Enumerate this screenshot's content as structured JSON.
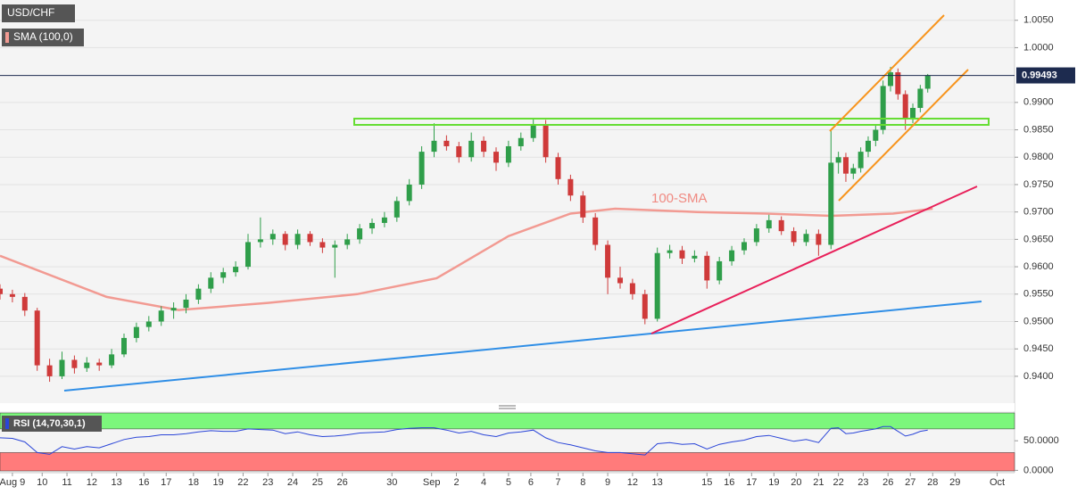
{
  "chart_data": {
    "type": "candlestick",
    "title": "USD/CHF",
    "annotation": "100-SMA",
    "xlim": [
      0,
      40.9
    ],
    "xticks": [
      {
        "value": 0.5,
        "label": "Aug 9"
      },
      {
        "value": 1.7,
        "label": "10"
      },
      {
        "value": 2.7,
        "label": "11"
      },
      {
        "value": 3.7,
        "label": "12"
      },
      {
        "value": 4.7,
        "label": "13"
      },
      {
        "value": 5.8,
        "label": "16"
      },
      {
        "value": 6.7,
        "label": "17"
      },
      {
        "value": 7.8,
        "label": "18"
      },
      {
        "value": 8.8,
        "label": "19"
      },
      {
        "value": 9.8,
        "label": "22"
      },
      {
        "value": 10.8,
        "label": "23"
      },
      {
        "value": 11.8,
        "label": "24"
      },
      {
        "value": 12.8,
        "label": "25"
      },
      {
        "value": 13.8,
        "label": "26"
      },
      {
        "value": 15.8,
        "label": "30"
      },
      {
        "value": 17.4,
        "label": "Sep"
      },
      {
        "value": 18.4,
        "label": "2"
      },
      {
        "value": 19.5,
        "label": "4"
      },
      {
        "value": 20.5,
        "label": "5"
      },
      {
        "value": 21.4,
        "label": "6"
      },
      {
        "value": 22.5,
        "label": "7"
      },
      {
        "value": 23.5,
        "label": "8"
      },
      {
        "value": 24.5,
        "label": "9"
      },
      {
        "value": 25.5,
        "label": "12"
      },
      {
        "value": 26.5,
        "label": "13"
      },
      {
        "value": 28.5,
        "label": "15"
      },
      {
        "value": 29.4,
        "label": "16"
      },
      {
        "value": 30.3,
        "label": "17"
      },
      {
        "value": 31.2,
        "label": "19"
      },
      {
        "value": 32.1,
        "label": "20"
      },
      {
        "value": 33.0,
        "label": "21"
      },
      {
        "value": 33.8,
        "label": "22"
      },
      {
        "value": 34.8,
        "label": "23"
      },
      {
        "value": 35.8,
        "label": "26"
      },
      {
        "value": 36.7,
        "label": "27"
      },
      {
        "value": 37.6,
        "label": "28"
      },
      {
        "value": 38.5,
        "label": "29"
      },
      {
        "value": 40.2,
        "label": "Oct"
      }
    ],
    "ylim": [
      0.9351,
      1.0087
    ],
    "yticks": [
      {
        "value": 1.005,
        "label": "1.0050"
      },
      {
        "value": 1.0,
        "label": "1.0000"
      },
      {
        "value": 0.99,
        "label": "0.9900"
      },
      {
        "value": 0.985,
        "label": "0.9850"
      },
      {
        "value": 0.98,
        "label": "0.9800"
      },
      {
        "value": 0.975,
        "label": "0.9750"
      },
      {
        "value": 0.97,
        "label": "0.9700"
      },
      {
        "value": 0.965,
        "label": "0.9650"
      },
      {
        "value": 0.96,
        "label": "0.9600"
      },
      {
        "value": 0.955,
        "label": "0.9550"
      },
      {
        "value": 0.95,
        "label": "0.9500"
      },
      {
        "value": 0.945,
        "label": "0.9450"
      },
      {
        "value": 0.94,
        "label": "0.9400"
      }
    ],
    "grid": true,
    "last_price": 0.99493,
    "up_color": "#2f9e4a",
    "down_color": "#cf3a3a",
    "x": [
      0,
      0.5,
      1,
      1.5,
      2,
      2.5,
      3,
      3.5,
      4,
      4.5,
      5,
      5.5,
      6,
      6.5,
      7,
      7.5,
      8,
      8.5,
      9,
      9.5,
      10,
      10.5,
      11,
      11.5,
      12,
      12.5,
      13,
      13.5,
      14,
      14.5,
      15,
      15.5,
      16,
      16.5,
      17,
      17.5,
      18,
      18.5,
      19,
      19.5,
      20,
      20.5,
      21,
      21.5,
      22,
      22.5,
      23,
      23.5,
      24,
      24.5,
      25,
      25.5,
      26,
      26.5,
      27,
      27.5,
      28,
      28.5,
      29,
      29.5,
      30,
      30.5,
      31,
      31.5,
      32,
      32.5,
      33,
      33.5,
      33.8,
      34.1,
      34.4,
      34.7,
      35,
      35.3,
      35.6,
      35.9,
      36.2,
      36.5,
      36.8,
      37.1,
      37.4
    ],
    "ohlc": [
      [
        0.956,
        0.9568,
        0.954,
        0.955
      ],
      [
        0.955,
        0.9558,
        0.9535,
        0.9545
      ],
      [
        0.9545,
        0.9552,
        0.951,
        0.952
      ],
      [
        0.952,
        0.9525,
        0.941,
        0.942
      ],
      [
        0.942,
        0.9432,
        0.939,
        0.94
      ],
      [
        0.94,
        0.9445,
        0.9395,
        0.943
      ],
      [
        0.943,
        0.9438,
        0.9405,
        0.9415
      ],
      [
        0.9415,
        0.9435,
        0.9408,
        0.9425
      ],
      [
        0.9425,
        0.9432,
        0.941,
        0.942
      ],
      [
        0.942,
        0.945,
        0.9415,
        0.944
      ],
      [
        0.944,
        0.9478,
        0.9435,
        0.947
      ],
      [
        0.947,
        0.9498,
        0.9462,
        0.949
      ],
      [
        0.949,
        0.951,
        0.9482,
        0.95
      ],
      [
        0.95,
        0.9528,
        0.9492,
        0.952
      ],
      [
        0.952,
        0.9535,
        0.9505,
        0.9525
      ],
      [
        0.9525,
        0.955,
        0.9515,
        0.954
      ],
      [
        0.954,
        0.9568,
        0.9532,
        0.956
      ],
      [
        0.956,
        0.959,
        0.9552,
        0.958
      ],
      [
        0.958,
        0.9598,
        0.957,
        0.959
      ],
      [
        0.959,
        0.961,
        0.9582,
        0.96
      ],
      [
        0.96,
        0.966,
        0.9595,
        0.9645
      ],
      [
        0.9645,
        0.969,
        0.9635,
        0.965
      ],
      [
        0.965,
        0.9668,
        0.964,
        0.966
      ],
      [
        0.966,
        0.9665,
        0.963,
        0.964
      ],
      [
        0.964,
        0.9668,
        0.9632,
        0.966
      ],
      [
        0.966,
        0.9665,
        0.9638,
        0.9645
      ],
      [
        0.9645,
        0.9652,
        0.9625,
        0.9635
      ],
      [
        0.9635,
        0.9648,
        0.958,
        0.964
      ],
      [
        0.964,
        0.966,
        0.9632,
        0.965
      ],
      [
        0.965,
        0.9678,
        0.9642,
        0.967
      ],
      [
        0.967,
        0.9688,
        0.966,
        0.968
      ],
      [
        0.968,
        0.97,
        0.9672,
        0.969
      ],
      [
        0.969,
        0.9728,
        0.9682,
        0.972
      ],
      [
        0.972,
        0.976,
        0.9712,
        0.975
      ],
      [
        0.975,
        0.982,
        0.9742,
        0.981
      ],
      [
        0.981,
        0.9862,
        0.98,
        0.983
      ],
      [
        0.983,
        0.984,
        0.9812,
        0.982
      ],
      [
        0.982,
        0.9828,
        0.979,
        0.98
      ],
      [
        0.98,
        0.9845,
        0.9792,
        0.983
      ],
      [
        0.983,
        0.9838,
        0.98,
        0.981
      ],
      [
        0.981,
        0.9818,
        0.9775,
        0.979
      ],
      [
        0.979,
        0.983,
        0.9782,
        0.982
      ],
      [
        0.982,
        0.9845,
        0.9812,
        0.9835
      ],
      [
        0.9835,
        0.987,
        0.9828,
        0.986
      ],
      [
        0.986,
        0.9868,
        0.979,
        0.98
      ],
      [
        0.98,
        0.9808,
        0.975,
        0.976
      ],
      [
        0.976,
        0.9768,
        0.972,
        0.973
      ],
      [
        0.973,
        0.9738,
        0.968,
        0.969
      ],
      [
        0.969,
        0.9698,
        0.963,
        0.964
      ],
      [
        0.964,
        0.9648,
        0.955,
        0.958
      ],
      [
        0.958,
        0.96,
        0.956,
        0.957
      ],
      [
        0.957,
        0.9578,
        0.954,
        0.955
      ],
      [
        0.955,
        0.9558,
        0.9495,
        0.9505
      ],
      [
        0.9505,
        0.9635,
        0.95,
        0.9625
      ],
      [
        0.9625,
        0.964,
        0.9615,
        0.963
      ],
      [
        0.963,
        0.9638,
        0.9605,
        0.9615
      ],
      [
        0.9615,
        0.963,
        0.9608,
        0.962
      ],
      [
        0.962,
        0.9628,
        0.956,
        0.9575
      ],
      [
        0.9575,
        0.9618,
        0.9568,
        0.961
      ],
      [
        0.961,
        0.9638,
        0.9602,
        0.963
      ],
      [
        0.963,
        0.9652,
        0.9622,
        0.9645
      ],
      [
        0.9645,
        0.9678,
        0.9638,
        0.967
      ],
      [
        0.967,
        0.9695,
        0.9662,
        0.9685
      ],
      [
        0.9685,
        0.9692,
        0.9658,
        0.9665
      ],
      [
        0.9665,
        0.9672,
        0.9638,
        0.9645
      ],
      [
        0.9645,
        0.9668,
        0.9638,
        0.966
      ],
      [
        0.966,
        0.9668,
        0.962,
        0.964
      ],
      [
        0.964,
        0.985,
        0.9632,
        0.979
      ],
      [
        0.979,
        0.981,
        0.977,
        0.98
      ],
      [
        0.98,
        0.9808,
        0.9755,
        0.977
      ],
      [
        0.977,
        0.9788,
        0.976,
        0.978
      ],
      [
        0.978,
        0.9818,
        0.9772,
        0.981
      ],
      [
        0.981,
        0.9838,
        0.98,
        0.983
      ],
      [
        0.983,
        0.9858,
        0.982,
        0.985
      ],
      [
        0.985,
        0.994,
        0.9842,
        0.993
      ],
      [
        0.993,
        0.9965,
        0.992,
        0.9955
      ],
      [
        0.9955,
        0.9962,
        0.9905,
        0.9915
      ],
      [
        0.9915,
        0.9922,
        0.985,
        0.987
      ],
      [
        0.987,
        0.9898,
        0.9862,
        0.989
      ],
      [
        0.989,
        0.9932,
        0.9882,
        0.9925
      ],
      [
        0.9925,
        0.9952,
        0.9918,
        0.9949
      ]
    ],
    "sma": {
      "name": "SMA (100,0)",
      "color": "#f29a92",
      "x": [
        0,
        4.3,
        7.2,
        10.8,
        14.4,
        17.6,
        20.5,
        23.0,
        24.8,
        28.1,
        30.9,
        33.5,
        36.0,
        37.6
      ],
      "values": [
        0.962,
        0.9545,
        0.9521,
        0.9534,
        0.955,
        0.9579,
        0.9656,
        0.9697,
        0.9706,
        0.97,
        0.9697,
        0.9693,
        0.9697,
        0.9706
      ]
    },
    "rsi": {
      "name": "RSI (14,70,30,1)",
      "color": "#2a45d8",
      "ylim": [
        -4,
        100
      ],
      "yticks": [
        {
          "value": 50,
          "label": "50.0000"
        },
        {
          "value": 0,
          "label": "0.0000"
        }
      ],
      "upper": 70,
      "lower": 30,
      "upper_color": "#7cf77c",
      "lower_color": "#ff7b7b",
      "values": [
        55,
        54,
        48,
        30,
        27,
        40,
        36,
        40,
        38,
        45,
        52,
        56,
        57,
        60,
        60,
        62,
        65,
        67,
        66,
        66,
        70,
        69,
        68,
        62,
        65,
        60,
        57,
        58,
        60,
        63,
        64,
        65,
        69,
        71,
        72,
        72,
        68,
        63,
        66,
        60,
        57,
        63,
        65,
        68,
        55,
        47,
        43,
        38,
        33,
        30,
        30,
        28,
        26,
        45,
        47,
        44,
        45,
        36,
        44,
        48,
        51,
        57,
        59,
        54,
        49,
        52,
        47,
        71,
        72,
        62,
        63,
        66,
        68,
        70,
        74,
        74,
        66,
        58,
        61,
        66,
        68
      ]
    }
  }
}
